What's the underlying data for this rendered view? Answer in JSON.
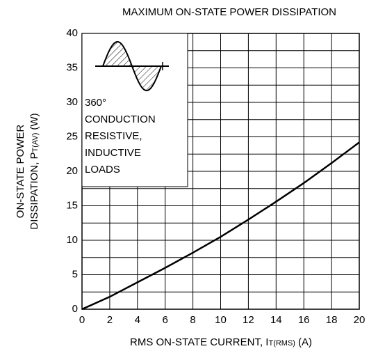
{
  "chart_data": {
    "type": "line",
    "title": "MAXIMUM ON-STATE POWER DISSIPATION",
    "x_label": {
      "main": "RMS ON-STATE CURRENT, I",
      "sub": "T(RMS)",
      "unit": "(A)"
    },
    "y_label": {
      "line1": "ON-STATE POWER",
      "main": "DISSIPATION, P",
      "sub": "T(AV)",
      "unit": "(W)"
    },
    "annotation": [
      "360°",
      "CONDUCTION",
      "RESISTIVE,",
      "INDUCTIVE",
      "LOADS"
    ],
    "x": [
      0,
      2,
      4,
      6,
      8,
      10,
      12,
      14,
      16,
      18,
      20
    ],
    "values": [
      0,
      1.8,
      3.9,
      6,
      8.2,
      10.5,
      13,
      15.6,
      18.3,
      21.2,
      24.2
    ],
    "color": "#000000",
    "xlim": [
      0,
      20
    ],
    "ylim": [
      0,
      40
    ],
    "xticks": [
      0,
      2,
      4,
      6,
      8,
      10,
      12,
      14,
      16,
      18,
      20
    ],
    "yticks": [
      0,
      5,
      10,
      15,
      20,
      25,
      30,
      35,
      40
    ],
    "yminorticks": [
      2.5,
      7.5,
      12.5,
      17.5,
      22.5,
      27.5,
      32.5,
      37.5
    ],
    "grid": true
  }
}
